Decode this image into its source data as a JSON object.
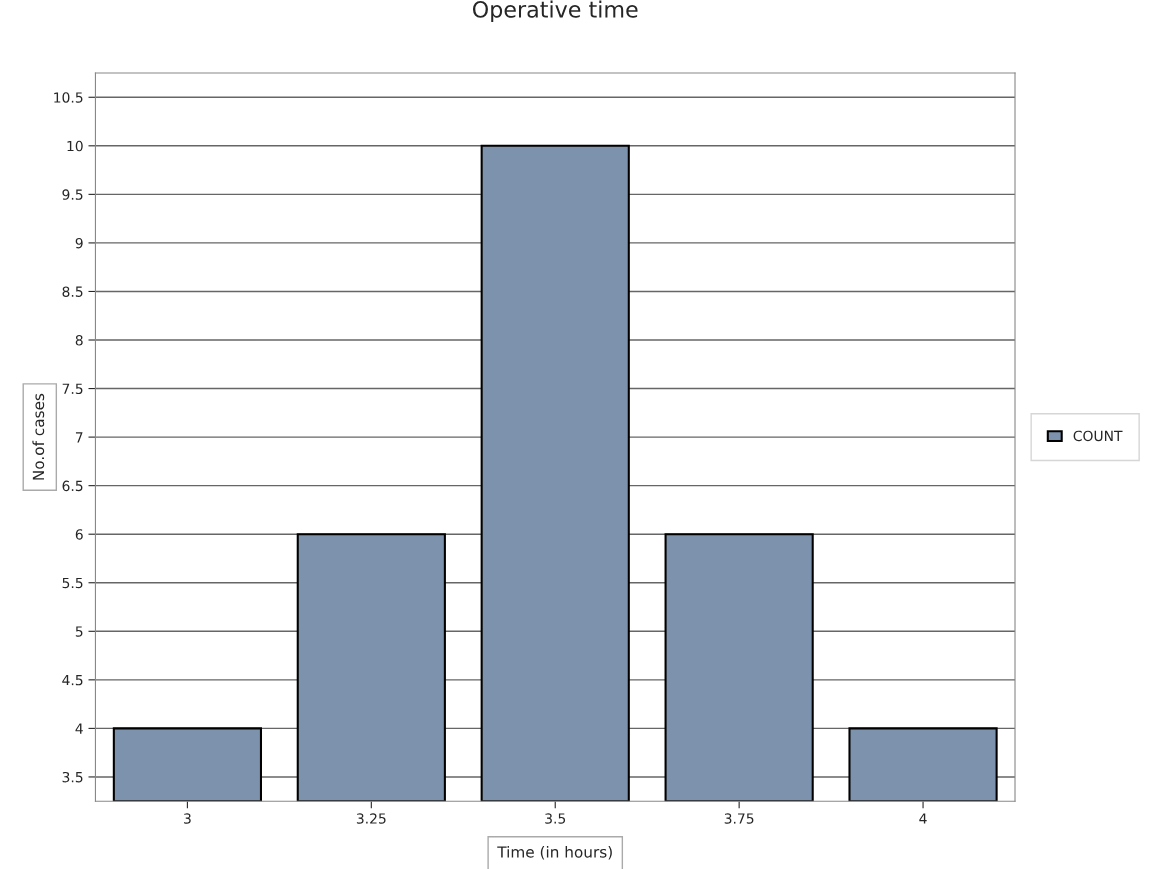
{
  "chart_data": {
    "type": "bar",
    "title": "Operative time",
    "xlabel": "Time (in hours)",
    "ylabel": "No.of cases",
    "categories": [
      "3",
      "3.25",
      "3.5",
      "3.75",
      "4"
    ],
    "series": [
      {
        "name": "COUNT",
        "color": "#7d93ad",
        "values": [
          4,
          6,
          10,
          6,
          4
        ]
      }
    ],
    "ylim": [
      3.25,
      10.75
    ],
    "yticks": [
      3.5,
      4,
      4.5,
      5,
      5.5,
      6,
      6.5,
      7,
      7.5,
      8,
      8.5,
      9,
      9.5,
      10,
      10.5
    ],
    "grid": "y",
    "legend": "right"
  }
}
